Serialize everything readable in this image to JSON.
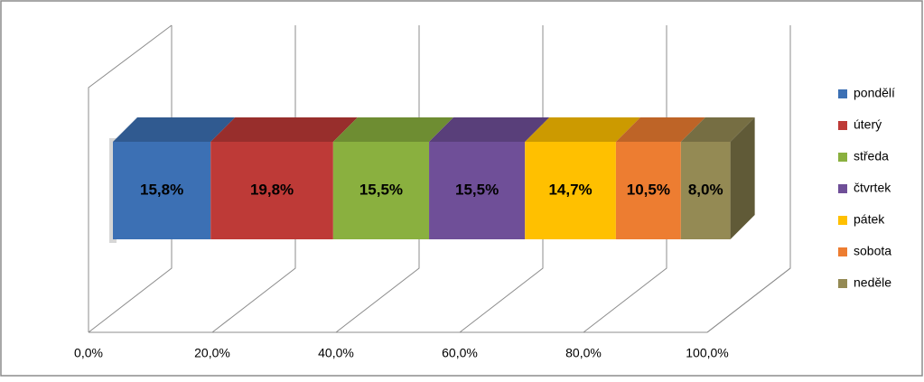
{
  "chart_data": {
    "type": "bar3d-stacked-horizontal",
    "xlim": [
      0,
      100
    ],
    "xticks": [
      {
        "value": 0,
        "label": "0,0%"
      },
      {
        "value": 20,
        "label": "20,0%"
      },
      {
        "value": 40,
        "label": "40,0%"
      },
      {
        "value": 60,
        "label": "60,0%"
      },
      {
        "value": 80,
        "label": "80,0%"
      },
      {
        "value": 100,
        "label": "100,0%"
      }
    ],
    "grid": true,
    "legend": "right",
    "series": [
      {
        "name": "pondělí",
        "color": "#3c70b4",
        "values": [
          15.8
        ],
        "value_labels": [
          "15,8%"
        ]
      },
      {
        "name": "úterý",
        "color": "#be3a37",
        "values": [
          19.8
        ],
        "value_labels": [
          "19,8%"
        ]
      },
      {
        "name": "středa",
        "color": "#8ab03f",
        "values": [
          15.5
        ],
        "value_labels": [
          "15,5%"
        ]
      },
      {
        "name": "čtvrtek",
        "color": "#6f4f98",
        "values": [
          15.5
        ],
        "value_labels": [
          "15,5%"
        ]
      },
      {
        "name": "pátek",
        "color": "#ffc000",
        "values": [
          14.7
        ],
        "value_labels": [
          "14,7%"
        ]
      },
      {
        "name": "sobota",
        "color": "#ed7d31",
        "values": [
          10.5
        ],
        "value_labels": [
          "10,5%"
        ]
      },
      {
        "name": "neděle",
        "color": "#948a54",
        "values": [
          8.0
        ],
        "value_labels": [
          "8,0%"
        ]
      }
    ]
  }
}
